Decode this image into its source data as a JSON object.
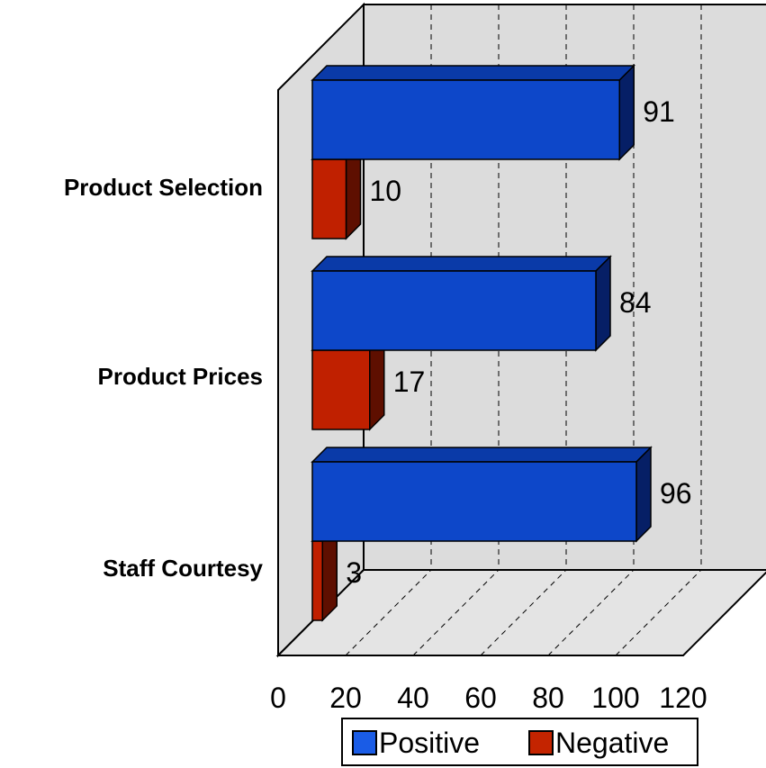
{
  "chart_data": {
    "type": "bar",
    "orientation": "horizontal",
    "three_d": true,
    "categories": [
      "Product Selection",
      "Product Prices",
      "Staff Courtesy"
    ],
    "series": [
      {
        "name": "Positive",
        "values": [
          91,
          84,
          96
        ]
      },
      {
        "name": "Negative",
        "values": [
          10,
          17,
          3
        ]
      }
    ],
    "title": "",
    "xlabel": "",
    "ylabel": "",
    "xlim": [
      0,
      120
    ],
    "x_ticks": [
      "0",
      "20",
      "40",
      "60",
      "80",
      "100",
      "120"
    ],
    "grid": true,
    "legend": "bottom",
    "colors": {
      "Positive": {
        "front": "#0d47c9",
        "top": "#0a3aa8",
        "side": "#061f66",
        "legend": "#1a5ce6"
      },
      "Negative": {
        "front": "#c02000",
        "top": "#9a1a00",
        "side": "#5e0f00",
        "legend": "#c42400"
      },
      "wall": "#dcdcdc",
      "floor": "#e4e4e4"
    }
  }
}
